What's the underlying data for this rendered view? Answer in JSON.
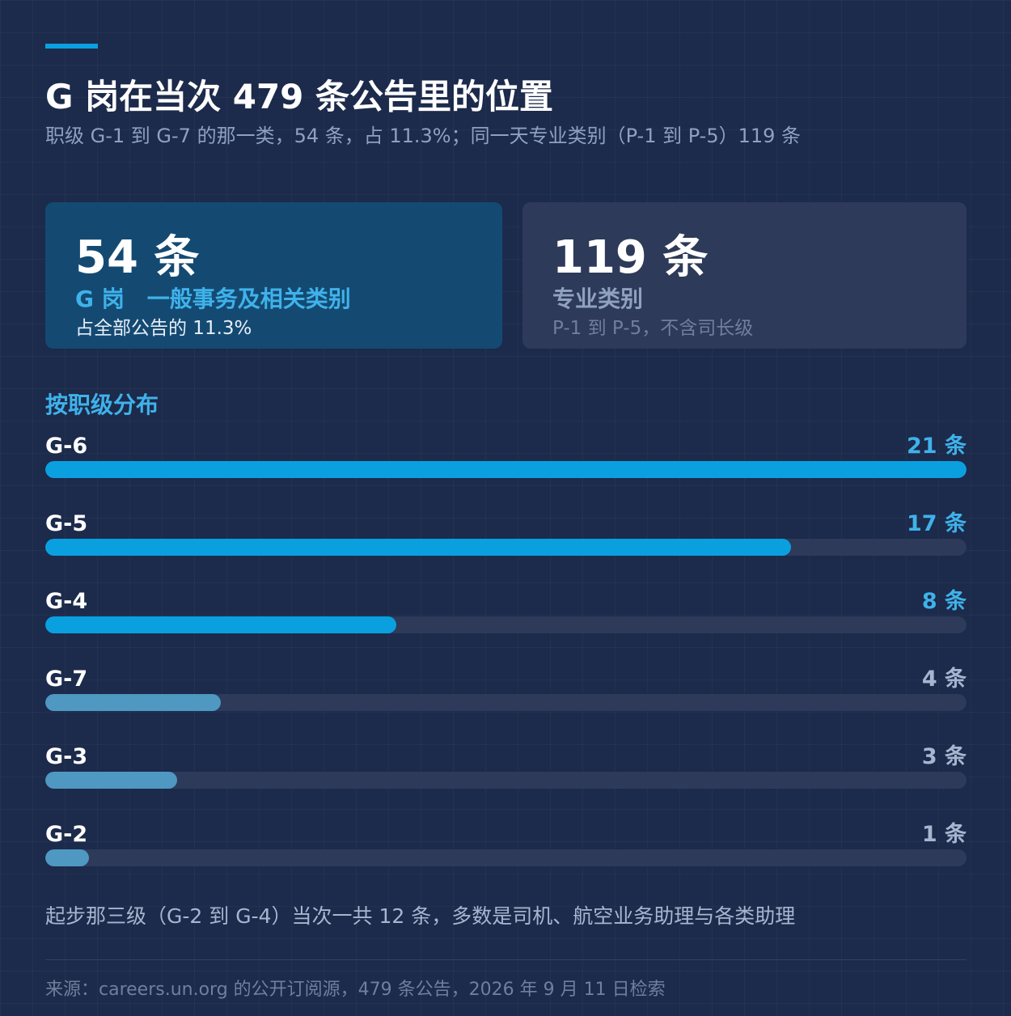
{
  "title": "G 岗在当次 479 条公告里的位置",
  "subtitle": "职级 G-1 到 G-7 的那一类，54 条，占 11.3%；同一天专业类别（P-1 到 P-5）119 条",
  "cards": {
    "g": {
      "value": "54 条",
      "label": "G 岗　一般事务及相关类别",
      "note": "占全部公告的 11.3%"
    },
    "p": {
      "value": "119 条",
      "label": "专业类别",
      "note": "P-1 到 P-5，不含司长级"
    }
  },
  "section_heading": "按职级分布",
  "footnote": "起步那三级（G-2 到 G-4）当次一共 12 条，多数是司机、航空业务助理与各类助理",
  "source": "来源：careers.un.org 的公开订阅源，479 条公告，2026 年 9 月 11 日检索",
  "colors": {
    "background": "#1c2a4b",
    "accent": "#0aa0e0",
    "bar_primary": "#0aa0e0",
    "bar_secondary": "#4e98c2",
    "value_primary": "#3fb2ea",
    "value_secondary": "#a7b6d0",
    "track": "#2d3a59"
  },
  "chart_data": {
    "type": "bar",
    "orientation": "horizontal",
    "categories": [
      "G-6",
      "G-5",
      "G-4",
      "G-7",
      "G-3",
      "G-2"
    ],
    "values": [
      21,
      17,
      8,
      4,
      3,
      1
    ],
    "value_labels": [
      "21 条",
      "17 条",
      "8 条",
      "4 条",
      "3 条",
      "1 条"
    ],
    "highlight": [
      true,
      true,
      true,
      false,
      false,
      false
    ],
    "xlim": [
      0,
      21
    ],
    "grid": false,
    "legend": "none"
  }
}
